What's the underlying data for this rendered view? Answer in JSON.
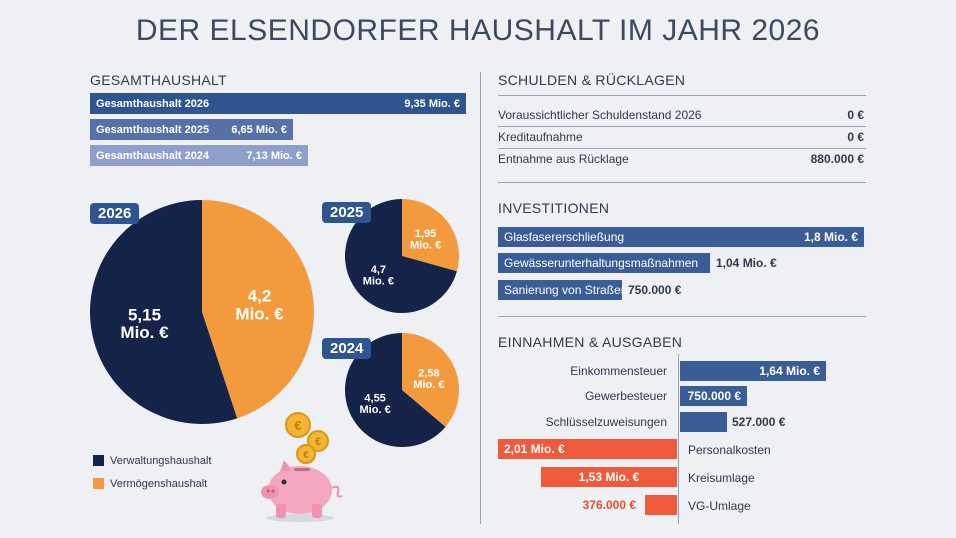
{
  "title": "DER ELSENDORFER HAUSHALT IM JAHR 2026",
  "colors": {
    "verwaltung": "#142347",
    "vermoegen": "#f39a3d",
    "bar_2026": "#2f5590",
    "bar_2025": "#5670a8",
    "bar_2024": "#8f9fcb",
    "einnahmen": "#3a5d95",
    "ausgaben": "#ef5a3c"
  },
  "gesamt": {
    "heading": "GESAMTHAUSHALT",
    "bars": [
      {
        "label": "Gesamthaushalt 2026",
        "value": "9,35 Mio. €",
        "amount": 9.35
      },
      {
        "label": "Gesamthaushalt 2025",
        "value": "6,65 Mio. €",
        "amount": 6.65
      },
      {
        "label": "Gesamthaushalt 2024",
        "value": "7,13 Mio. €",
        "amount": 7.13
      }
    ]
  },
  "pies": [
    {
      "year": "2026",
      "verwaltung": 5.15,
      "vermoegen": 4.2,
      "verwaltung_label": "5,15",
      "vermoegen_label": "4,2",
      "unit": "Mio. €"
    },
    {
      "year": "2025",
      "verwaltung": 4.7,
      "vermoegen": 1.95,
      "verwaltung_label": "4,7",
      "vermoegen_label": "1,95",
      "unit": "Mio. €"
    },
    {
      "year": "2024",
      "verwaltung": 4.55,
      "vermoegen": 2.58,
      "verwaltung_label": "4,55",
      "vermoegen_label": "2,58",
      "unit": "Mio. €"
    }
  ],
  "legend": {
    "verwaltung": "Verwaltungshaushalt",
    "vermoegen": "Vermögenshaushalt"
  },
  "schulden": {
    "heading": "SCHULDEN & RÜCKLAGEN",
    "rows": [
      {
        "label": "Voraussichtlicher Schuldenstand 2026",
        "value": "0 €"
      },
      {
        "label": "Kreditaufnahme",
        "value": "0 €"
      },
      {
        "label": "Entnahme aus Rücklage",
        "value": "880.000 €"
      }
    ]
  },
  "investitionen": {
    "heading": "INVESTITIONEN",
    "items": [
      {
        "label": "Glasfasererschließung",
        "value": "1,8 Mio. €",
        "amount": 1800000
      },
      {
        "label": "Gewässerunterhaltungsmaßnahmen",
        "value": "1,04 Mio. €",
        "amount": 1040000
      },
      {
        "label": "Sanierung von Straßen",
        "value": "750.000 €",
        "amount": 750000
      }
    ]
  },
  "einnahmen_ausgaben": {
    "heading": "EINNAHMEN & AUSGABEN",
    "einnahmen": [
      {
        "label": "Einkommensteuer",
        "value": "1,64 Mio. €",
        "amount": 1640000
      },
      {
        "label": "Gewerbesteuer",
        "value": "750.000 €",
        "amount": 750000
      },
      {
        "label": "Schlüsselzuweisungen",
        "value": "527.000 €",
        "amount": 527000
      }
    ],
    "ausgaben": [
      {
        "label": "Personalkosten",
        "value": "2,01 Mio. €",
        "amount": 2010000
      },
      {
        "label": "Kreisumlage",
        "value": "1,53 Mio. €",
        "amount": 1530000
      },
      {
        "label": "VG-Umlage",
        "value": "376.000 €",
        "amount": 376000
      }
    ]
  },
  "chart_data": [
    {
      "type": "bar",
      "categories": [
        "Gesamthaushalt 2026",
        "Gesamthaushalt 2025",
        "Gesamthaushalt 2024"
      ],
      "values": [
        9.35,
        6.65,
        7.13
      ],
      "title": "GESAMTHAUSHALT"
    },
    {
      "type": "pie",
      "title": "2026",
      "categories": [
        "Verwaltungshaushalt",
        "Vermögenshaushalt"
      ],
      "values": [
        5.15,
        4.2
      ]
    },
    {
      "type": "pie",
      "title": "2025",
      "categories": [
        "Verwaltungshaushalt",
        "Vermögenshaushalt"
      ],
      "values": [
        4.7,
        1.95
      ]
    },
    {
      "type": "pie",
      "title": "2024",
      "categories": [
        "Verwaltungshaushalt",
        "Vermögenshaushalt"
      ],
      "values": [
        4.55,
        2.58
      ]
    },
    {
      "type": "bar",
      "title": "INVESTITIONEN",
      "categories": [
        "Glasfasererschließung",
        "Gewässerunterhaltungsmaßnahmen",
        "Sanierung von Straßen"
      ],
      "values": [
        1800000,
        1040000,
        750000
      ]
    },
    {
      "type": "bar",
      "title": "EINNAHMEN & AUSGABEN",
      "categories": [
        "Einkommensteuer",
        "Gewerbesteuer",
        "Schlüsselzuweisungen",
        "Personalkosten",
        "Kreisumlage",
        "VG-Umlage"
      ],
      "values": [
        1640000,
        750000,
        527000,
        -2010000,
        -1530000,
        -376000
      ]
    }
  ]
}
